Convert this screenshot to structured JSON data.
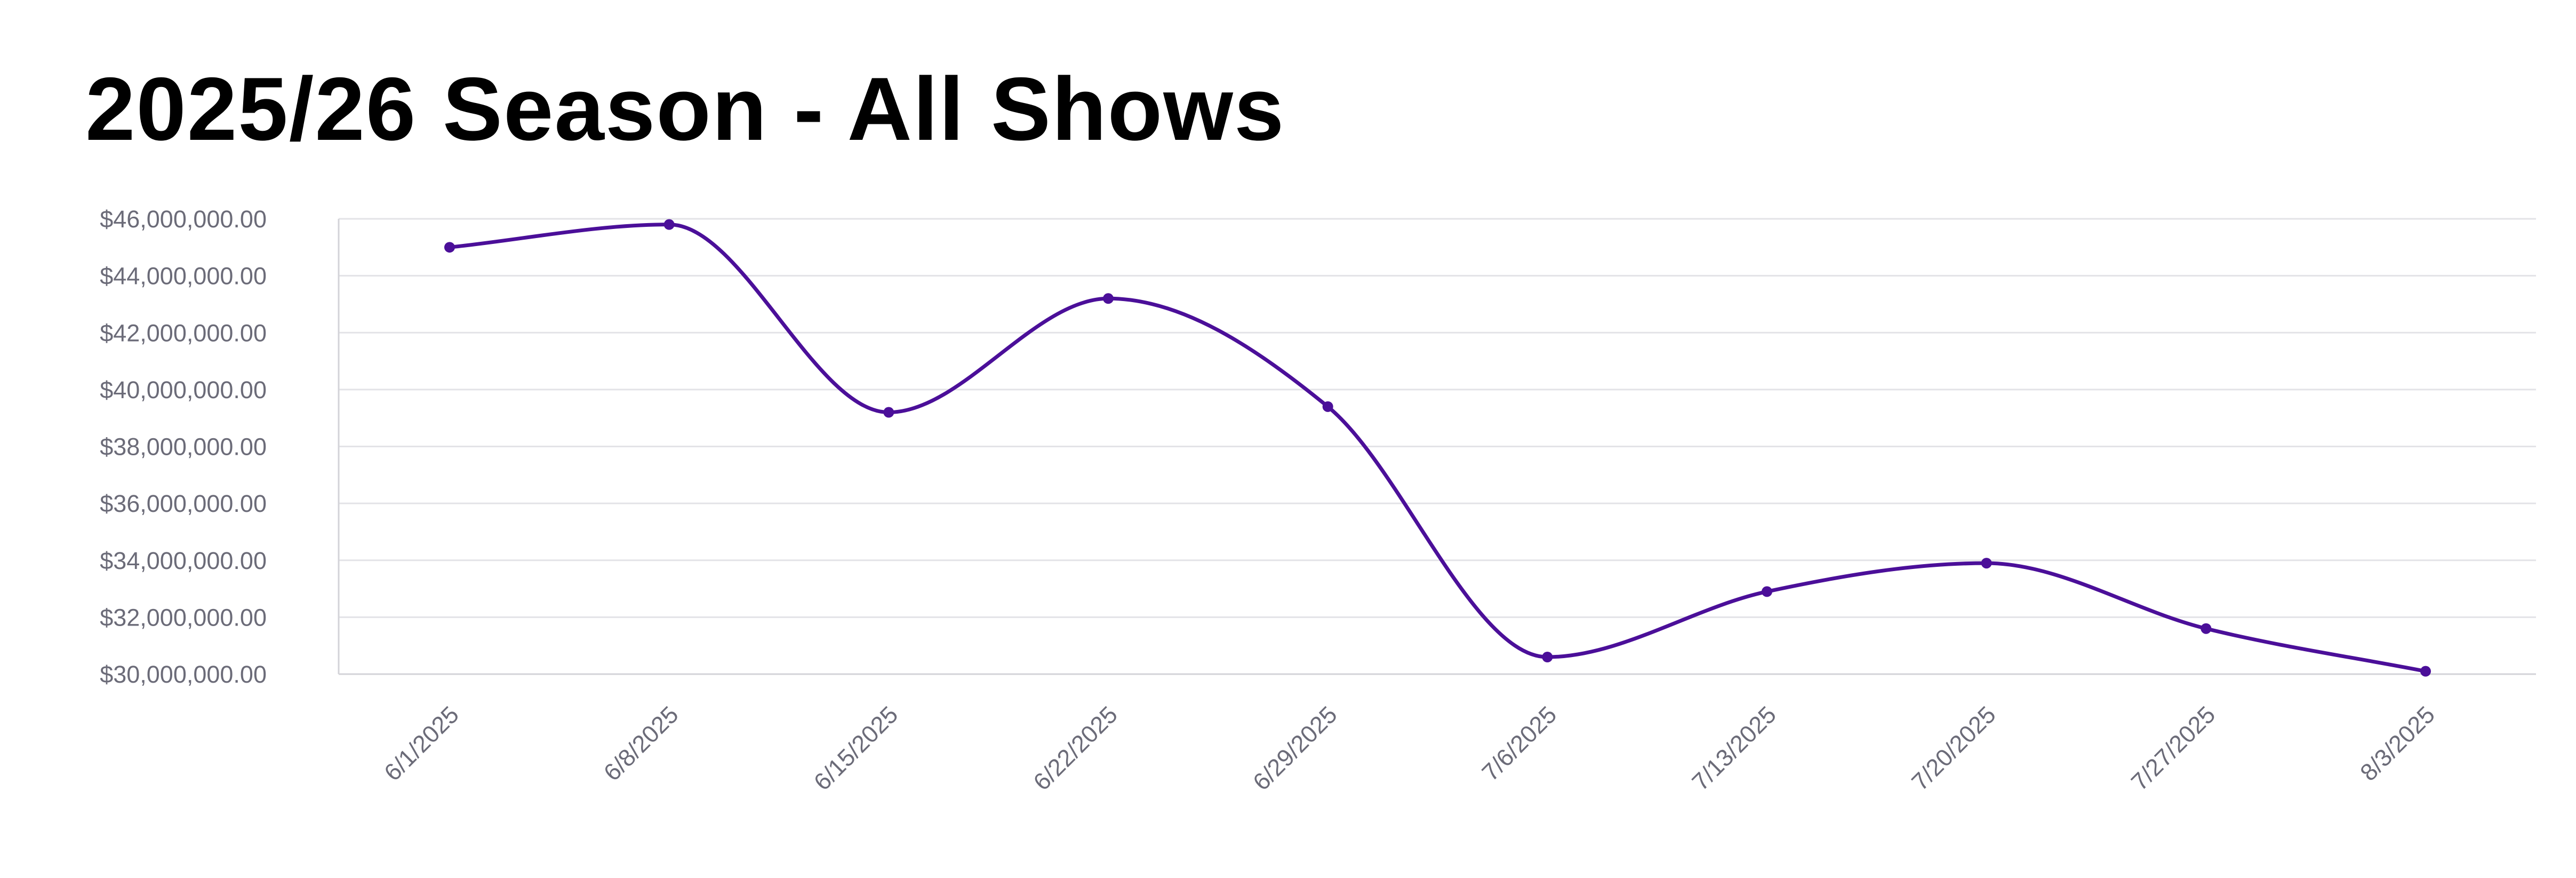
{
  "chart_data": {
    "type": "line",
    "title": "2025/26 Season - All Shows",
    "xlabel": "",
    "ylabel": "",
    "categories": [
      "6/1/2025",
      "6/8/2025",
      "6/15/2025",
      "6/22/2025",
      "6/29/2025",
      "7/6/2025",
      "7/13/2025",
      "7/20/2025",
      "7/27/2025",
      "8/3/2025"
    ],
    "y_ticks": [
      "$30,000,000.00",
      "$32,000,000.00",
      "$34,000,000.00",
      "$36,000,000.00",
      "$38,000,000.00",
      "$40,000,000.00",
      "$42,000,000.00",
      "$44,000,000.00",
      "$46,000,000.00"
    ],
    "ylim": [
      30000000,
      46000000
    ],
    "grid": true,
    "smooth": true,
    "series": [
      {
        "color": "#4b0f99",
        "values": [
          45000000,
          45800000,
          39200000,
          43200000,
          39400000,
          30600000,
          32900000,
          33900000,
          31600000,
          30100000
        ]
      }
    ]
  }
}
